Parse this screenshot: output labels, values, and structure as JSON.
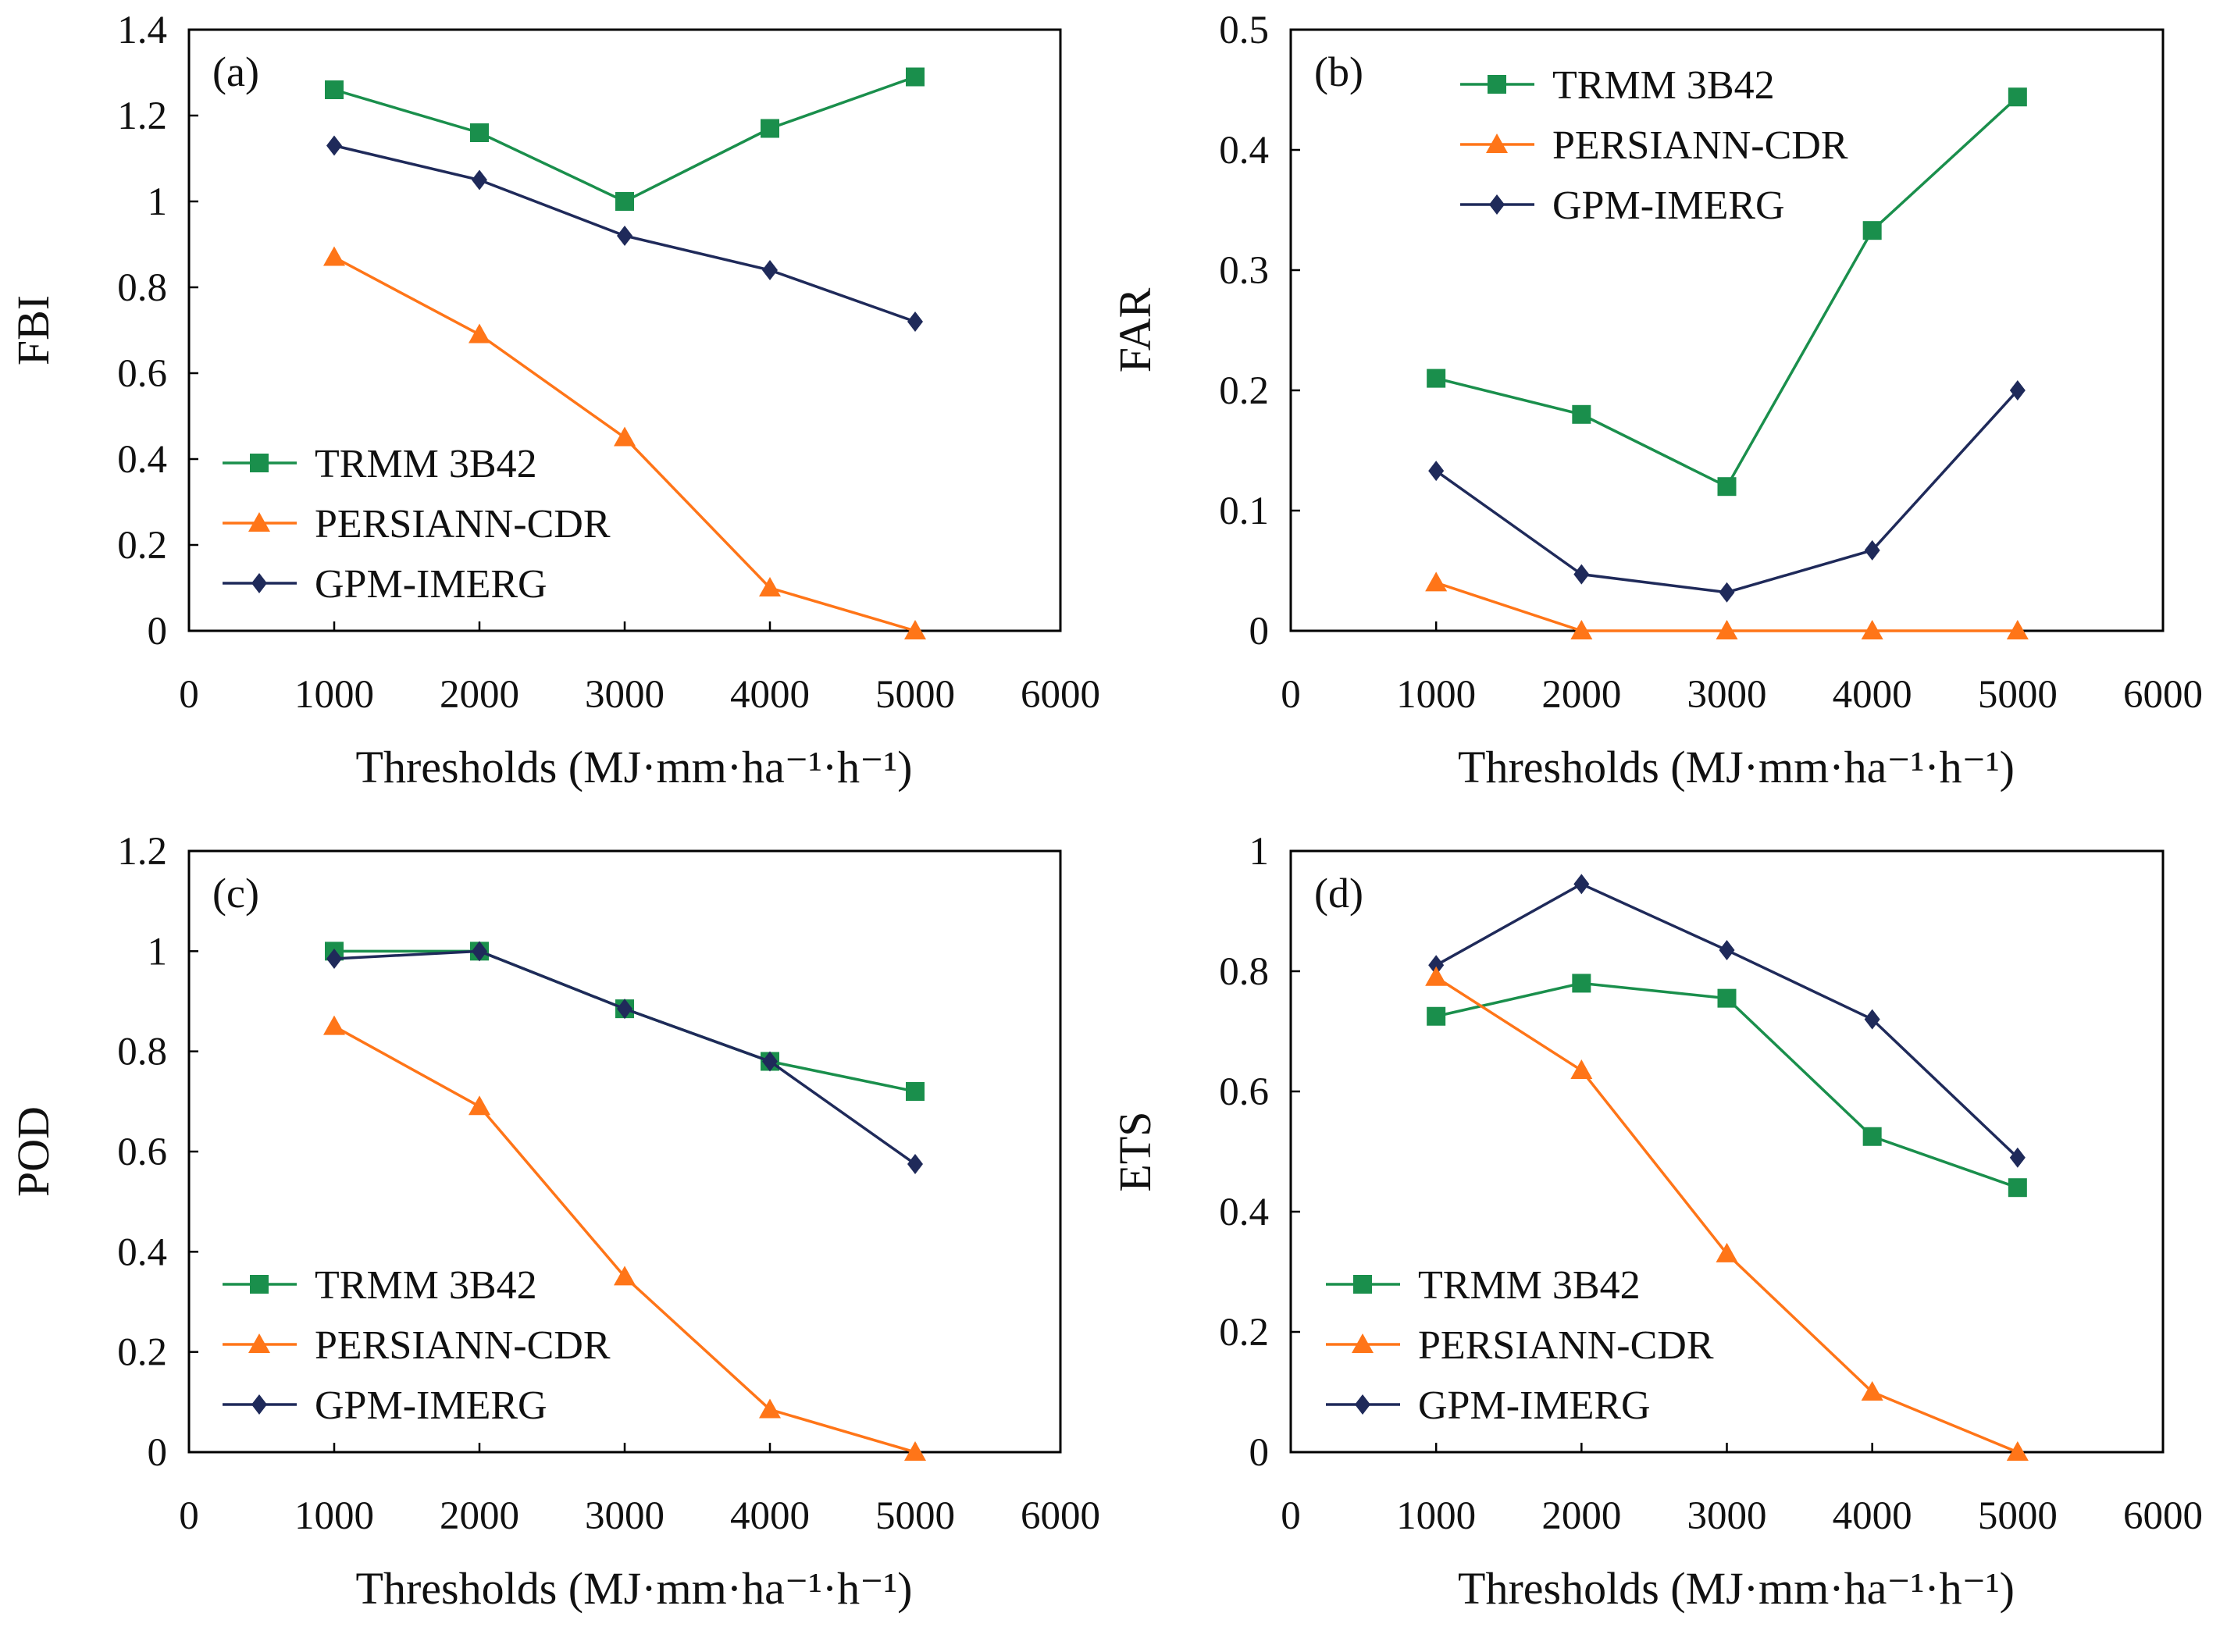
{
  "figure": {
    "colors": {
      "trmm": "#1a8f4c",
      "persiann": "#ff7518",
      "gpm": "#1f2a5a",
      "frame": "#000000"
    }
  },
  "series_meta": [
    {
      "key": "trmm",
      "name": "TRMM 3B42",
      "marker": "square"
    },
    {
      "key": "persiann",
      "name": "PERSIANN-CDR",
      "marker": "triangle"
    },
    {
      "key": "gpm",
      "name": "GPM-IMERG",
      "marker": "diamond"
    }
  ],
  "chart_data": [
    {
      "panel": "(a)",
      "type": "line",
      "title": "",
      "xlabel": "Thresholds (MJ·mm·ha⁻¹·h⁻¹)",
      "ylabel": "FBI",
      "x": [
        1000,
        2000,
        3000,
        4000,
        5000
      ],
      "xlim": [
        0,
        6000
      ],
      "xticks": [
        0,
        1000,
        2000,
        3000,
        4000,
        5000,
        6000
      ],
      "ylim": [
        0,
        1.4
      ],
      "yticks": [
        "0",
        "0.2",
        "0.4",
        "0.6",
        "0.8",
        "1",
        "1.2",
        "1.4"
      ],
      "legend_position": "bottom-left",
      "series": [
        {
          "name": "TRMM 3B42",
          "values": [
            1.26,
            1.16,
            1.0,
            1.17,
            1.29
          ]
        },
        {
          "name": "PERSIANN-CDR",
          "values": [
            0.87,
            0.69,
            0.45,
            0.1,
            0.0
          ]
        },
        {
          "name": "GPM-IMERG",
          "values": [
            1.13,
            1.05,
            0.92,
            0.84,
            0.72
          ]
        }
      ]
    },
    {
      "panel": "(b)",
      "type": "line",
      "title": "",
      "xlabel": "Thresholds (MJ·mm·ha⁻¹·h⁻¹)",
      "ylabel": "FAR",
      "x": [
        1000,
        2000,
        3000,
        4000,
        5000
      ],
      "xlim": [
        0,
        6000
      ],
      "xticks": [
        0,
        1000,
        2000,
        3000,
        4000,
        5000,
        6000
      ],
      "ylim": [
        0,
        0.5
      ],
      "yticks": [
        "0",
        "0.1",
        "0.2",
        "0.3",
        "0.4",
        "0.5"
      ],
      "legend_position": "top-left",
      "series": [
        {
          "name": "TRMM 3B42",
          "values": [
            0.21,
            0.18,
            0.12,
            0.333,
            0.444
          ]
        },
        {
          "name": "PERSIANN-CDR",
          "values": [
            0.04,
            0.0,
            0.0,
            0.0,
            0.0
          ]
        },
        {
          "name": "GPM-IMERG",
          "values": [
            0.133,
            0.047,
            0.032,
            0.067,
            0.2
          ]
        }
      ]
    },
    {
      "panel": "(c)",
      "type": "line",
      "title": "",
      "xlabel": "Thresholds (MJ·mm·ha⁻¹·h⁻¹)",
      "ylabel": "POD",
      "x": [
        1000,
        2000,
        3000,
        4000,
        5000
      ],
      "xlim": [
        0,
        6000
      ],
      "xticks": [
        0,
        1000,
        2000,
        3000,
        4000,
        5000,
        6000
      ],
      "ylim": [
        0,
        1.2
      ],
      "yticks": [
        "0",
        "0.2",
        "0.4",
        "0.6",
        "0.8",
        "1",
        "1.2"
      ],
      "legend_position": "bottom-left",
      "series": [
        {
          "name": "TRMM 3B42",
          "values": [
            1.0,
            1.0,
            0.885,
            0.78,
            0.72
          ]
        },
        {
          "name": "PERSIANN-CDR",
          "values": [
            0.85,
            0.69,
            0.35,
            0.085,
            0.0
          ]
        },
        {
          "name": "GPM-IMERG",
          "values": [
            0.985,
            1.0,
            0.885,
            0.78,
            0.575
          ]
        }
      ]
    },
    {
      "panel": "(d)",
      "type": "line",
      "title": "",
      "xlabel": "Thresholds (MJ·mm·ha⁻¹·h⁻¹)",
      "ylabel": "ETS",
      "x": [
        1000,
        2000,
        3000,
        4000,
        5000
      ],
      "xlim": [
        0,
        6000
      ],
      "xticks": [
        0,
        1000,
        2000,
        3000,
        4000,
        5000,
        6000
      ],
      "ylim": [
        0,
        1
      ],
      "yticks": [
        "0",
        "0.2",
        "0.4",
        "0.6",
        "0.8",
        "1"
      ],
      "legend_position": "bottom-left",
      "series": [
        {
          "name": "TRMM 3B42",
          "values": [
            0.725,
            0.78,
            0.755,
            0.525,
            0.44
          ]
        },
        {
          "name": "PERSIANN-CDR",
          "values": [
            0.79,
            0.635,
            0.33,
            0.1,
            0.0
          ]
        },
        {
          "name": "GPM-IMERG",
          "values": [
            0.81,
            0.945,
            0.835,
            0.72,
            0.49
          ]
        }
      ]
    }
  ]
}
